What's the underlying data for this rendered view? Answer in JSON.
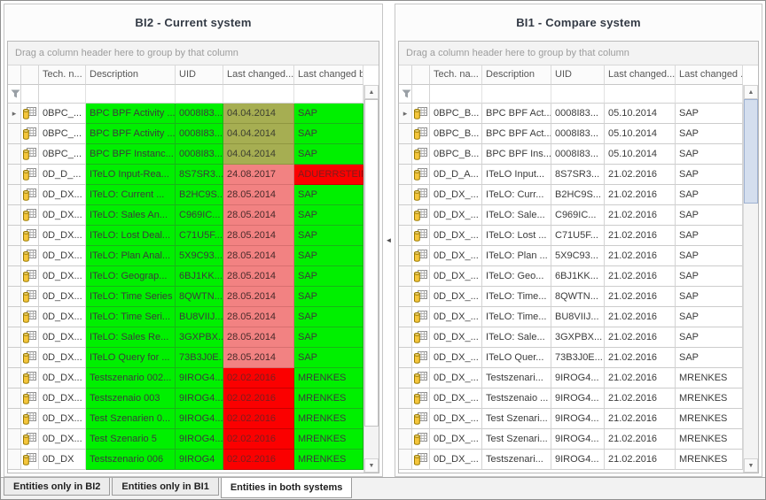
{
  "colors": {
    "match_green": "#00F000",
    "changed_olive": "#A6AE52",
    "changed_salmon": "#F28282",
    "conflict_red": "#FB0000"
  },
  "grids": [
    {
      "title": "BI2 -  Current system",
      "group_panel": "Drag a column header here to group by that column",
      "columns": [
        "Tech. n...",
        "Description",
        "UID",
        "Last changed...",
        "Last changed by"
      ],
      "rows": [
        {
          "cells": [
            "0BPC_...",
            "BPC BPF Activity ...",
            "0008I83...",
            "04.04.2014",
            "SAP"
          ],
          "bg": [
            "",
            "g",
            "g",
            "o",
            "g"
          ]
        },
        {
          "cells": [
            "0BPC_...",
            "BPC BPF Activity ...",
            "0008I83...",
            "04.04.2014",
            "SAP"
          ],
          "bg": [
            "",
            "g",
            "g",
            "o",
            "g"
          ]
        },
        {
          "cells": [
            "0BPC_...",
            "BPC BPF Instanc...",
            "0008I83...",
            "04.04.2014",
            "SAP"
          ],
          "bg": [
            "",
            "g",
            "g",
            "o",
            "g"
          ]
        },
        {
          "cells": [
            "0D_D_...",
            "ITeLO Input-Rea...",
            "8S7SR3...",
            "24.08.2017",
            "ADUERRSTEIN"
          ],
          "bg": [
            "",
            "g",
            "g",
            "s",
            "r"
          ]
        },
        {
          "cells": [
            "0D_DX...",
            "ITeLO: Current ...",
            "B2HC9S...",
            "28.05.2014",
            "SAP"
          ],
          "bg": [
            "",
            "g",
            "g",
            "s",
            "g"
          ]
        },
        {
          "cells": [
            "0D_DX...",
            "ITeLO: Sales An...",
            "C969IC...",
            "28.05.2014",
            "SAP"
          ],
          "bg": [
            "",
            "g",
            "g",
            "s",
            "g"
          ]
        },
        {
          "cells": [
            "0D_DX...",
            "ITeLO: Lost Deal...",
            "C71U5F...",
            "28.05.2014",
            "SAP"
          ],
          "bg": [
            "",
            "g",
            "g",
            "s",
            "g"
          ]
        },
        {
          "cells": [
            "0D_DX...",
            "ITeLO: Plan Anal...",
            "5X9C93...",
            "28.05.2014",
            "SAP"
          ],
          "bg": [
            "",
            "g",
            "g",
            "s",
            "g"
          ]
        },
        {
          "cells": [
            "0D_DX...",
            "ITeLO: Geograp...",
            "6BJ1KK...",
            "28.05.2014",
            "SAP"
          ],
          "bg": [
            "",
            "g",
            "g",
            "s",
            "g"
          ]
        },
        {
          "cells": [
            "0D_DX...",
            "ITeLO: Time Series",
            "8QWTN...",
            "28.05.2014",
            "SAP"
          ],
          "bg": [
            "",
            "g",
            "g",
            "s",
            "g"
          ]
        },
        {
          "cells": [
            "0D_DX...",
            "ITeLO: Time Seri...",
            "BU8VIIJ...",
            "28.05.2014",
            "SAP"
          ],
          "bg": [
            "",
            "g",
            "g",
            "s",
            "g"
          ]
        },
        {
          "cells": [
            "0D_DX...",
            "ITeLO: Sales Re...",
            "3GXPBX...",
            "28.05.2014",
            "SAP"
          ],
          "bg": [
            "",
            "g",
            "g",
            "s",
            "g"
          ]
        },
        {
          "cells": [
            "0D_DX...",
            "ITeLO Query for ...",
            "73B3J0E...",
            "28.05.2014",
            "SAP"
          ],
          "bg": [
            "",
            "g",
            "g",
            "s",
            "g"
          ]
        },
        {
          "cells": [
            "0D_DX...",
            "Testszenario 002...",
            "9IROG4...",
            "02.02.2016",
            "MRENKES"
          ],
          "bg": [
            "",
            "g",
            "g",
            "r",
            "g"
          ]
        },
        {
          "cells": [
            "0D_DX...",
            "Testszenaio 003",
            "9IROG4...",
            "02.02.2016",
            "MRENKES"
          ],
          "bg": [
            "",
            "g",
            "g",
            "r",
            "g"
          ]
        },
        {
          "cells": [
            "0D_DX...",
            "Test Szenarien 0...",
            "9IROG4...",
            "02.02.2016",
            "MRENKES"
          ],
          "bg": [
            "",
            "g",
            "g",
            "r",
            "g"
          ]
        },
        {
          "cells": [
            "0D_DX...",
            "Test Szenario 5",
            "9IROG4...",
            "02.02.2016",
            "MRENKES"
          ],
          "bg": [
            "",
            "g",
            "g",
            "r",
            "g"
          ]
        },
        {
          "cells": [
            "0D_DX",
            "Testszenario 006",
            "9IROG4",
            "02.02.2016",
            "MRENKES"
          ],
          "bg": [
            "",
            "g",
            "g",
            "r",
            "g"
          ]
        }
      ]
    },
    {
      "title": "BI1 -  Compare system",
      "group_panel": "Drag a column header here to group by that column",
      "columns": [
        "Tech. na...",
        "Description",
        "UID",
        "Last changed...",
        "Last changed ..."
      ],
      "rows": [
        {
          "cells": [
            "0BPC_B...",
            "BPC BPF Act...",
            "0008I83...",
            "05.10.2014",
            "SAP"
          ],
          "bg": [
            "",
            "",
            "",
            "",
            ""
          ]
        },
        {
          "cells": [
            "0BPC_B...",
            "BPC BPF Act...",
            "0008I83...",
            "05.10.2014",
            "SAP"
          ],
          "bg": [
            "",
            "",
            "",
            "",
            ""
          ]
        },
        {
          "cells": [
            "0BPC_B...",
            "BPC BPF Ins...",
            "0008I83...",
            "05.10.2014",
            "SAP"
          ],
          "bg": [
            "",
            "",
            "",
            "",
            ""
          ]
        },
        {
          "cells": [
            "0D_D_A...",
            "ITeLO Input...",
            "8S7SR3...",
            "21.02.2016",
            "SAP"
          ],
          "bg": [
            "",
            "",
            "",
            "",
            ""
          ]
        },
        {
          "cells": [
            "0D_DX_...",
            "ITeLO: Curr...",
            "B2HC9S...",
            "21.02.2016",
            "SAP"
          ],
          "bg": [
            "",
            "",
            "",
            "",
            ""
          ]
        },
        {
          "cells": [
            "0D_DX_...",
            "ITeLO: Sale...",
            "C969IC...",
            "21.02.2016",
            "SAP"
          ],
          "bg": [
            "",
            "",
            "",
            "",
            ""
          ]
        },
        {
          "cells": [
            "0D_DX_...",
            "ITeLO: Lost ...",
            "C71U5F...",
            "21.02.2016",
            "SAP"
          ],
          "bg": [
            "",
            "",
            "",
            "",
            ""
          ]
        },
        {
          "cells": [
            "0D_DX_...",
            "ITeLO: Plan ...",
            "5X9C93...",
            "21.02.2016",
            "SAP"
          ],
          "bg": [
            "",
            "",
            "",
            "",
            ""
          ]
        },
        {
          "cells": [
            "0D_DX_...",
            "ITeLO: Geo...",
            "6BJ1KK...",
            "21.02.2016",
            "SAP"
          ],
          "bg": [
            "",
            "",
            "",
            "",
            ""
          ]
        },
        {
          "cells": [
            "0D_DX_...",
            "ITeLO: Time...",
            "8QWTN...",
            "21.02.2016",
            "SAP"
          ],
          "bg": [
            "",
            "",
            "",
            "",
            ""
          ]
        },
        {
          "cells": [
            "0D_DX_...",
            "ITeLO: Time...",
            "BU8VIIJ...",
            "21.02.2016",
            "SAP"
          ],
          "bg": [
            "",
            "",
            "",
            "",
            ""
          ]
        },
        {
          "cells": [
            "0D_DX_...",
            "ITeLO: Sale...",
            "3GXPBX...",
            "21.02.2016",
            "SAP"
          ],
          "bg": [
            "",
            "",
            "",
            "",
            ""
          ]
        },
        {
          "cells": [
            "0D_DX_...",
            "ITeLO Quer...",
            "73B3J0E...",
            "21.02.2016",
            "SAP"
          ],
          "bg": [
            "",
            "",
            "",
            "",
            ""
          ]
        },
        {
          "cells": [
            "0D_DX_...",
            "Testszenari...",
            "9IROG4...",
            "21.02.2016",
            "MRENKES"
          ],
          "bg": [
            "",
            "",
            "",
            "",
            ""
          ]
        },
        {
          "cells": [
            "0D_DX_...",
            "Testszenaio ...",
            "9IROG4...",
            "21.02.2016",
            "MRENKES"
          ],
          "bg": [
            "",
            "",
            "",
            "",
            ""
          ]
        },
        {
          "cells": [
            "0D_DX_...",
            "Test Szenari...",
            "9IROG4...",
            "21.02.2016",
            "MRENKES"
          ],
          "bg": [
            "",
            "",
            "",
            "",
            ""
          ]
        },
        {
          "cells": [
            "0D_DX_...",
            "Test Szenari...",
            "9IROG4...",
            "21.02.2016",
            "MRENKES"
          ],
          "bg": [
            "",
            "",
            "",
            "",
            ""
          ]
        },
        {
          "cells": [
            "0D_DX_...",
            "Testszenari...",
            "9IROG4...",
            "21.02.2016",
            "MRENKES"
          ],
          "bg": [
            "",
            "",
            "",
            "",
            ""
          ]
        }
      ]
    }
  ],
  "footer_tabs": [
    {
      "label": "Entities only in BI2",
      "active": false
    },
    {
      "label": "Entities only in BI1",
      "active": false
    },
    {
      "label": "Entities in both systems",
      "active": true
    }
  ]
}
